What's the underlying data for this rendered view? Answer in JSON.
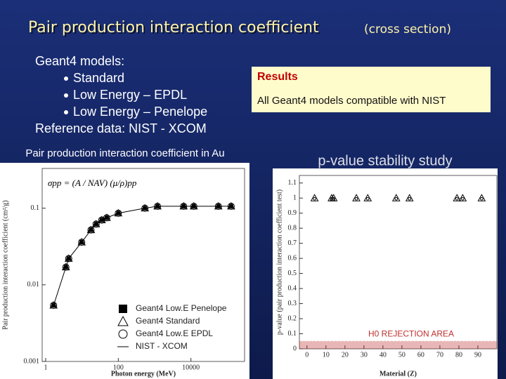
{
  "slide": {
    "title": "Pair production interaction coefficient",
    "subtitle": "(cross section)",
    "models_heading": "Geant4 models:",
    "models": [
      "Standard",
      "Low Energy – EPDL",
      "Low Energy – Penelope"
    ],
    "reference": "Reference data: NIST - XCOM",
    "results_heading": "Results",
    "results_text": "All Geant4 models compatible with NIST"
  },
  "chart_data": [
    {
      "type": "line",
      "title": "Pair production interaction coefficient in Au",
      "formula": "σpp = (A / NAV) (μ/ρ)pp",
      "x_label": "Photon energy (MeV)",
      "y_label": "Pair production interaction coefficient (cm²/g)",
      "log_x": true,
      "log_y": true,
      "x": [
        1.65,
        3.6,
        4.3,
        9.8,
        17.7,
        24.4,
        35,
        48,
        100,
        540,
        1200,
        6300,
        12000,
        57000,
        128000
      ],
      "series": [
        {
          "name": "Geant4 Low.E Penelope",
          "marker": "square",
          "color": "#000000",
          "values": [
            0.0054,
            0.017,
            0.022,
            0.036,
            0.052,
            0.062,
            0.07,
            0.075,
            0.086,
            0.1,
            0.106,
            0.106,
            0.106,
            0.106,
            0.106
          ]
        },
        {
          "name": "Geant4 Standard",
          "marker": "triangle",
          "color": "#000000",
          "values": [
            0.0054,
            0.017,
            0.022,
            0.036,
            0.052,
            0.062,
            0.07,
            0.075,
            0.086,
            0.1,
            0.106,
            0.106,
            0.106,
            0.106,
            0.106
          ]
        },
        {
          "name": "Geant4 Low.E EPDL",
          "marker": "circle",
          "color": "#000000",
          "values": [
            0.0054,
            0.017,
            0.022,
            0.036,
            0.052,
            0.062,
            0.07,
            0.075,
            0.086,
            0.1,
            0.106,
            0.106,
            0.106,
            0.106,
            0.106
          ]
        },
        {
          "name": "NIST - XCOM",
          "marker": "line",
          "color": "#000000",
          "values": [
            0.0054,
            0.017,
            0.022,
            0.036,
            0.052,
            0.062,
            0.07,
            0.075,
            0.086,
            0.1,
            0.106,
            0.106,
            0.106,
            0.106,
            0.106
          ]
        }
      ],
      "xlim": [
        0.8,
        300000
      ],
      "xticks": [
        1,
        100,
        10000
      ],
      "ylim": [
        0.001,
        0.33
      ],
      "yticks": [
        0.001,
        0.01,
        0.1
      ]
    },
    {
      "type": "scatter",
      "title": "p-value stability study",
      "x_label": "Material (Z)",
      "y_label": "p-value (pair production interaction coefficient test)",
      "x": [
        4,
        13,
        14,
        26,
        32,
        47,
        54,
        79,
        82,
        92
      ],
      "values": [
        1,
        1,
        1,
        1,
        1,
        1,
        1,
        1,
        1,
        1
      ],
      "color": "#000000",
      "rejection": {
        "label": "H0 REJECTION AREA",
        "range": [
          0,
          0.05
        ],
        "color": "#c03030"
      },
      "xlim": [
        -4,
        100
      ],
      "xticks": [
        0,
        10,
        20,
        30,
        40,
        50,
        60,
        70,
        80,
        90
      ],
      "ylim": [
        0,
        1.15
      ],
      "yticks": [
        0,
        0.1,
        0.2,
        0.3,
        0.4,
        0.5,
        0.6,
        0.7,
        0.8,
        0.9,
        1,
        1.1
      ]
    }
  ]
}
